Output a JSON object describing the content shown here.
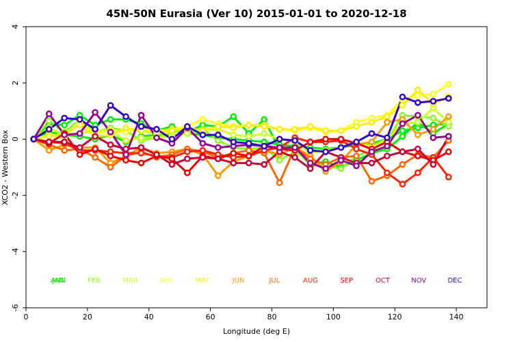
{
  "chart_data": {
    "type": "line",
    "title": "45N-50N Eurasia (Ver 10)   2015-01-01 to 2020-12-18",
    "xlabel": "Longitude (deg E)",
    "ylabel": "XCO2 - Western Box",
    "xlim": [
      0,
      150
    ],
    "ylim": [
      -6,
      4
    ],
    "xticks": [
      0,
      20,
      40,
      60,
      80,
      100,
      120,
      140
    ],
    "yticks": [
      -6,
      -4,
      -2,
      0,
      2,
      4
    ],
    "x": [
      2.5,
      7.5,
      12.5,
      17.5,
      22.5,
      27.5,
      32.5,
      37.5,
      42.5,
      47.5,
      52.5,
      57.5,
      62.5,
      67.5,
      72.5,
      77.5,
      82.5,
      87.5,
      92.5,
      97.5,
      102.5,
      107.5,
      112.5,
      117.5,
      122.5,
      127.5,
      132.5,
      137.5
    ],
    "legend_position": "bottom",
    "series": [
      {
        "name": "ANN",
        "color": "#00ee00",
        "values": [
          0.0,
          0.25,
          0.15,
          0.1,
          0.0,
          0.15,
          -0.1,
          0.1,
          0.15,
          0.1,
          0.2,
          0.15,
          0.05,
          0.0,
          -0.05,
          -0.1,
          -0.2,
          -0.25,
          -0.3,
          -0.35,
          -0.3,
          -0.2,
          -0.15,
          0.0,
          0.3,
          0.4,
          0.5,
          0.55
        ]
      },
      {
        "name": "JAN",
        "color": "#00ee00",
        "values": [
          0.0,
          0.55,
          0.5,
          0.85,
          0.5,
          0.7,
          0.7,
          0.55,
          0.3,
          0.45,
          0.25,
          0.5,
          0.45,
          0.8,
          0.2,
          0.7,
          -0.35,
          -0.35,
          -0.9,
          -0.8,
          -1.0,
          -0.75,
          -0.5,
          -0.35,
          0.1,
          0.6,
          0.2,
          0.55
        ]
      },
      {
        "name": "FEB",
        "color": "#88ff22",
        "values": [
          0.0,
          0.65,
          0.25,
          0.7,
          0.25,
          0.4,
          0.3,
          -0.05,
          0.05,
          0.25,
          0.3,
          0.35,
          -0.05,
          -0.3,
          -0.35,
          -0.3,
          -0.75,
          -0.45,
          -0.8,
          -0.95,
          -1.05,
          -0.6,
          -0.4,
          -0.05,
          0.85,
          0.8,
          0.75,
          0.45
        ]
      },
      {
        "name": "MAR",
        "color": "#ccff22",
        "values": [
          0.0,
          0.4,
          0.15,
          0.2,
          0.3,
          0.3,
          -0.05,
          0.05,
          0.05,
          0.1,
          0.2,
          0.3,
          0.35,
          0.15,
          0.1,
          0.2,
          0.0,
          -0.1,
          -0.5,
          -0.4,
          -0.3,
          -0.1,
          -0.25,
          0.0,
          0.55,
          0.6,
          1.1,
          0.6
        ]
      },
      {
        "name": "APR",
        "color": "#ffff22",
        "values": [
          0.0,
          0.15,
          0.05,
          0.6,
          0.2,
          0.3,
          0.25,
          0.35,
          0.3,
          0.35,
          0.45,
          0.7,
          0.55,
          0.45,
          0.5,
          0.5,
          0.35,
          0.3,
          0.4,
          0.25,
          0.3,
          0.6,
          0.75,
          0.85,
          1.4,
          1.55,
          1.6,
          1.95
        ]
      },
      {
        "name": "MAY",
        "color": "#ffee00",
        "values": [
          0.0,
          0.1,
          0.2,
          0.5,
          0.1,
          0.15,
          0.4,
          0.3,
          0.2,
          0.3,
          0.4,
          0.3,
          0.45,
          0.4,
          0.5,
          0.45,
          0.35,
          0.35,
          0.45,
          0.3,
          0.3,
          0.45,
          0.6,
          0.8,
          1.2,
          1.75,
          1.25,
          1.5
        ]
      },
      {
        "name": "JUN",
        "color": "#ff9900",
        "values": [
          0.0,
          -0.4,
          -0.2,
          -0.3,
          -0.3,
          -0.85,
          -0.6,
          -0.3,
          -0.5,
          -0.45,
          -0.35,
          -0.55,
          -1.3,
          -0.8,
          -0.6,
          -0.4,
          -0.55,
          -0.3,
          -0.6,
          -1.15,
          -0.8,
          -0.2,
          -0.1,
          0.6,
          0.7,
          0.15,
          0.35,
          0.8
        ]
      },
      {
        "name": "JUL",
        "color": "#ff6600",
        "values": [
          0.0,
          -0.2,
          -0.4,
          -0.35,
          -0.65,
          -1.0,
          -0.6,
          -0.45,
          -0.65,
          -0.55,
          -0.35,
          -0.45,
          -0.65,
          -0.5,
          -0.4,
          -0.5,
          -1.55,
          -0.3,
          -0.7,
          -0.9,
          -0.65,
          -0.6,
          -1.5,
          -1.3,
          -0.9,
          -0.55,
          -0.65,
          -0.05
        ]
      },
      {
        "name": "AUG",
        "color": "#ff2200",
        "values": [
          0.0,
          -0.1,
          -0.15,
          -0.4,
          -0.4,
          -0.45,
          -0.5,
          -0.5,
          -0.6,
          -0.65,
          -0.45,
          -0.4,
          -0.55,
          -0.65,
          -0.6,
          -0.4,
          -0.3,
          0.05,
          -0.1,
          -0.1,
          -0.05,
          -0.35,
          -0.55,
          -1.2,
          -1.6,
          -1.2,
          -0.65,
          -1.35
        ]
      },
      {
        "name": "SEP",
        "color": "#ee0000",
        "values": [
          0.0,
          -0.15,
          0.2,
          -0.55,
          -0.35,
          -0.6,
          -0.75,
          -0.85,
          -0.6,
          -0.7,
          -1.2,
          -0.6,
          -0.7,
          -0.5,
          -0.6,
          -0.25,
          -0.35,
          -0.4,
          -0.1,
          0.0,
          0.0,
          -0.15,
          -0.35,
          -0.1,
          -0.45,
          -0.6,
          -0.75,
          -0.45
        ]
      },
      {
        "name": "OCT",
        "color": "#cc0033",
        "values": [
          0.0,
          -0.1,
          -0.1,
          -0.3,
          0.1,
          -0.2,
          -0.35,
          -0.3,
          -0.55,
          -0.9,
          -0.7,
          -0.65,
          -0.7,
          -0.85,
          -0.85,
          -0.9,
          -0.45,
          -0.65,
          -1.05,
          -0.45,
          -0.65,
          -0.85,
          -0.85,
          -0.6,
          -0.45,
          -0.35,
          -0.9,
          0.1
        ]
      },
      {
        "name": "NOV",
        "color": "#990099",
        "values": [
          0.0,
          0.9,
          0.15,
          0.2,
          0.95,
          0.25,
          -0.55,
          0.85,
          0.05,
          -0.15,
          0.4,
          -0.15,
          -0.3,
          -0.25,
          -0.2,
          -0.25,
          -0.3,
          -0.3,
          -0.85,
          -1.05,
          -0.75,
          -0.95,
          -0.45,
          -0.25,
          0.55,
          0.85,
          0.05,
          0.1
        ]
      },
      {
        "name": "DEC",
        "color": "#3300cc",
        "values": [
          0.0,
          0.35,
          0.75,
          0.7,
          0.35,
          1.2,
          0.8,
          0.45,
          0.35,
          0.0,
          0.45,
          0.15,
          0.15,
          -0.1,
          -0.15,
          -0.25,
          0.0,
          -0.05,
          -0.4,
          -0.45,
          -0.3,
          -0.1,
          0.2,
          0.05,
          1.5,
          1.3,
          1.35,
          1.45
        ]
      }
    ]
  }
}
